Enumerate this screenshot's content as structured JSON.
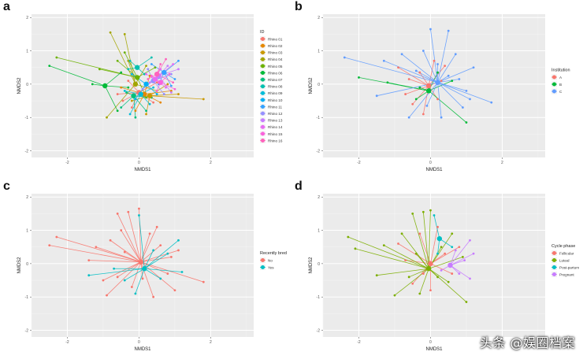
{
  "watermark": "头条 @娱圈档案",
  "chart_data": [
    {
      "panel": "a",
      "type": "scatter",
      "xlabel": "NMDS1",
      "ylabel": "NMDS2",
      "xlim": [
        -3,
        3.2
      ],
      "ylim": [
        -2.2,
        2.1
      ],
      "xticks": [
        -2,
        0,
        2
      ],
      "yticks": [
        -2,
        -1,
        0,
        1,
        2
      ],
      "legend_title": "ID",
      "legend_position": "right",
      "groups": [
        {
          "name": "Rhino 01",
          "color": "#F8766D",
          "centroid": [
            0.0,
            -0.25
          ],
          "points": [
            [
              -0.6,
              -0.3
            ],
            [
              -0.3,
              0.1
            ],
            [
              0.4,
              -0.55
            ],
            [
              -0.2,
              -0.7
            ],
            [
              0.5,
              0.05
            ],
            [
              -0.45,
              -0.5
            ]
          ]
        },
        {
          "name": "Rhino 02",
          "color": "#E58700",
          "centroid": [
            0.15,
            -0.3
          ],
          "points": [
            [
              -0.5,
              -0.1
            ],
            [
              0.9,
              -0.2
            ],
            [
              -0.1,
              -0.8
            ],
            [
              0.6,
              -0.55
            ],
            [
              0.3,
              0.25
            ]
          ]
        },
        {
          "name": "Rhino 03",
          "color": "#C99800",
          "centroid": [
            0.3,
            -0.35
          ],
          "points": [
            [
              1.8,
              -0.45
            ],
            [
              1.1,
              -0.3
            ],
            [
              0.2,
              -0.9
            ],
            [
              0.8,
              0.0
            ],
            [
              -0.2,
              -0.5
            ]
          ]
        },
        {
          "name": "Rhino 04",
          "color": "#A3A500",
          "centroid": [
            -0.1,
            0.0
          ],
          "points": [
            [
              -0.8,
              1.55
            ],
            [
              -0.4,
              1.5
            ],
            [
              -0.9,
              -1.0
            ],
            [
              0.2,
              0.55
            ],
            [
              -0.3,
              0.7
            ],
            [
              0.5,
              -0.2
            ]
          ]
        },
        {
          "name": "Rhino 05",
          "color": "#6BB100",
          "centroid": [
            -0.05,
            0.2
          ],
          "points": [
            [
              -2.3,
              0.8
            ],
            [
              -1.1,
              0.45
            ],
            [
              -0.6,
              0.7
            ],
            [
              0.45,
              0.5
            ],
            [
              0.2,
              -0.4
            ],
            [
              -0.4,
              0.95
            ]
          ]
        },
        {
          "name": "Rhino 06",
          "color": "#00BA38",
          "centroid": [
            -0.95,
            -0.05
          ],
          "points": [
            [
              -2.5,
              0.55
            ],
            [
              -0.5,
              0.35
            ],
            [
              -0.6,
              -0.8
            ],
            [
              -0.3,
              -0.1
            ],
            [
              -1.3,
              0.0
            ]
          ]
        },
        {
          "name": "Rhino 07",
          "color": "#00BF7D",
          "centroid": [
            -0.15,
            -0.35
          ],
          "points": [
            [
              -0.5,
              -0.7
            ],
            [
              0.2,
              -0.8
            ],
            [
              -0.1,
              -1.0
            ],
            [
              0.35,
              -0.4
            ],
            [
              -0.35,
              -0.25
            ]
          ]
        },
        {
          "name": "Rhino 08",
          "color": "#00C0AF",
          "centroid": [
            -0.05,
            0.5
          ],
          "points": [
            [
              0.35,
              0.8
            ],
            [
              -0.25,
              0.7
            ],
            [
              0.15,
              0.3
            ],
            [
              -0.3,
              0.45
            ]
          ]
        },
        {
          "name": "Rhino 09",
          "color": "#00BCD8",
          "centroid": [
            0.05,
            -0.3
          ],
          "points": [
            [
              -0.25,
              -0.9
            ],
            [
              0.3,
              -0.6
            ],
            [
              -0.4,
              -0.2
            ],
            [
              0.4,
              -0.1
            ]
          ]
        },
        {
          "name": "Rhino 10",
          "color": "#00B0F6",
          "centroid": [
            0.2,
            0.0
          ],
          "points": [
            [
              0.5,
              -0.3
            ],
            [
              -0.2,
              0.3
            ],
            [
              0.55,
              0.2
            ],
            [
              -0.1,
              -0.45
            ]
          ]
        },
        {
          "name": "Rhino 11",
          "color": "#35A2FF",
          "centroid": [
            0.7,
            0.35
          ],
          "points": [
            [
              1.1,
              0.7
            ],
            [
              0.9,
              -0.05
            ],
            [
              0.35,
              0.6
            ],
            [
              1.0,
              0.15
            ],
            [
              0.55,
              0.0
            ]
          ]
        },
        {
          "name": "Rhino 12",
          "color": "#9590FF",
          "centroid": [
            0.4,
            0.1
          ],
          "points": [
            [
              0.9,
              0.3
            ],
            [
              0.1,
              -0.15
            ],
            [
              0.7,
              -0.3
            ],
            [
              0.25,
              0.45
            ]
          ]
        },
        {
          "name": "Rhino 13",
          "color": "#C77CFF",
          "centroid": [
            0.55,
            0.25
          ],
          "points": [
            [
              1.1,
              0.45
            ],
            [
              0.8,
              0.55
            ],
            [
              0.3,
              0.05
            ],
            [
              0.9,
              -0.25
            ]
          ]
        },
        {
          "name": "Rhino 14",
          "color": "#E76BF3",
          "centroid": [
            0.45,
            0.15
          ],
          "points": [
            [
              0.95,
              0.6
            ],
            [
              0.6,
              0.45
            ],
            [
              0.2,
              0.3
            ],
            [
              0.75,
              -0.1
            ]
          ]
        },
        {
          "name": "Rhino 15",
          "color": "#FA62DB",
          "centroid": [
            0.6,
            0.05
          ],
          "points": [
            [
              1.0,
              -0.15
            ],
            [
              0.35,
              0.25
            ],
            [
              0.85,
              0.3
            ],
            [
              0.5,
              -0.2
            ]
          ]
        },
        {
          "name": "Rhino 16",
          "color": "#FF62BC",
          "centroid": [
            0.5,
            0.3
          ],
          "points": [
            [
              0.75,
              0.75
            ],
            [
              0.25,
              0.15
            ],
            [
              0.95,
              0.05
            ],
            [
              0.6,
              0.6
            ]
          ]
        }
      ]
    },
    {
      "panel": "b",
      "type": "scatter",
      "xlabel": "NMDS1",
      "ylabel": "NMDS2",
      "xlim": [
        -3,
        3.2
      ],
      "ylim": [
        -2.2,
        2.1
      ],
      "xticks": [
        -2,
        0,
        2
      ],
      "yticks": [
        -2,
        -1,
        0,
        1,
        2
      ],
      "legend_title": "Institution",
      "legend_position": "right",
      "groups": [
        {
          "name": "A",
          "color": "#F8766D",
          "centroid": [
            -0.05,
            -0.05
          ],
          "points": [
            [
              -0.9,
              0.5
            ],
            [
              -0.5,
              -0.6
            ],
            [
              0.3,
              0.1
            ],
            [
              -0.3,
              0.35
            ],
            [
              -0.6,
              0.15
            ],
            [
              0.2,
              -0.45
            ],
            [
              -0.2,
              -0.9
            ],
            [
              0.4,
              0.55
            ],
            [
              -0.7,
              -0.3
            ],
            [
              0.1,
              0.7
            ]
          ]
        },
        {
          "name": "B",
          "color": "#00BA38",
          "centroid": [
            -0.05,
            -0.2
          ],
          "points": [
            [
              -2.0,
              0.2
            ],
            [
              -1.2,
              0.05
            ],
            [
              1.0,
              -1.15
            ],
            [
              0.6,
              0.1
            ],
            [
              -0.4,
              -0.45
            ],
            [
              0.2,
              0.35
            ],
            [
              -0.3,
              -0.1
            ]
          ]
        },
        {
          "name": "C",
          "color": "#619CFF",
          "centroid": [
            0.2,
            0.05
          ],
          "points": [
            [
              -2.4,
              0.8
            ],
            [
              -1.3,
              0.7
            ],
            [
              0.0,
              1.65
            ],
            [
              0.5,
              1.6
            ],
            [
              1.7,
              -0.55
            ],
            [
              -1.5,
              -0.35
            ],
            [
              -0.6,
              -1.0
            ],
            [
              0.9,
              -0.7
            ],
            [
              1.2,
              0.5
            ],
            [
              -0.8,
              0.9
            ],
            [
              0.7,
              0.9
            ],
            [
              0.3,
              -1.0
            ],
            [
              -0.1,
              -0.65
            ],
            [
              1.0,
              -0.2
            ],
            [
              -0.4,
              0.4
            ],
            [
              0.5,
              0.25
            ],
            [
              0.8,
              0.15
            ],
            [
              0.2,
              0.6
            ],
            [
              -0.2,
              1.0
            ],
            [
              1.1,
              -0.45
            ]
          ]
        }
      ]
    },
    {
      "panel": "c",
      "type": "scatter",
      "xlabel": "NMDS1",
      "ylabel": "NMDS2",
      "xlim": [
        -3,
        3.2
      ],
      "ylim": [
        -2.2,
        2.1
      ],
      "xticks": [
        -2,
        0,
        2
      ],
      "yticks": [
        -2,
        -1,
        0,
        1,
        2
      ],
      "legend_title": "Recently bred",
      "legend_position": "right",
      "groups": [
        {
          "name": "No",
          "color": "#F8766D",
          "centroid": [
            0.05,
            0.05
          ],
          "points": [
            [
              -2.5,
              0.55
            ],
            [
              -2.3,
              0.8
            ],
            [
              -1.2,
              0.5
            ],
            [
              -0.6,
              1.5
            ],
            [
              -0.3,
              1.55
            ],
            [
              0.0,
              1.65
            ],
            [
              1.8,
              -0.55
            ],
            [
              1.1,
              0.4
            ],
            [
              -0.9,
              -0.95
            ],
            [
              0.4,
              -1.0
            ],
            [
              -0.6,
              -0.4
            ],
            [
              0.8,
              -0.3
            ],
            [
              -1.4,
              0.1
            ],
            [
              0.3,
              0.9
            ],
            [
              -0.2,
              -0.7
            ],
            [
              0.6,
              0.55
            ],
            [
              -0.8,
              0.7
            ],
            [
              0.9,
              0.2
            ],
            [
              -0.4,
              0.35
            ],
            [
              0.1,
              -0.45
            ],
            [
              1.0,
              -0.8
            ],
            [
              -1.0,
              -0.5
            ],
            [
              0.5,
              1.1
            ],
            [
              -0.5,
              1.0
            ]
          ]
        },
        {
          "name": "Yes",
          "color": "#00BFC4",
          "centroid": [
            0.15,
            -0.15
          ],
          "points": [
            [
              -1.4,
              -0.35
            ],
            [
              1.1,
              0.7
            ],
            [
              1.2,
              -0.25
            ],
            [
              0.6,
              -0.45
            ],
            [
              -0.4,
              -0.5
            ],
            [
              0.0,
              1.45
            ],
            [
              0.8,
              0.3
            ],
            [
              -0.1,
              -0.9
            ],
            [
              0.4,
              0.4
            ],
            [
              -0.7,
              -0.15
            ]
          ]
        }
      ]
    },
    {
      "panel": "d",
      "type": "scatter",
      "xlabel": "NMDS1",
      "ylabel": "NMDS2",
      "xlim": [
        -3,
        3.2
      ],
      "ylim": [
        -2.2,
        2.1
      ],
      "xticks": [
        -2,
        0,
        2
      ],
      "yticks": [
        -2,
        -1,
        0,
        1,
        2
      ],
      "legend_title": "Cycle phase",
      "legend_position": "right",
      "groups": [
        {
          "name": "Follicular",
          "color": "#F8766D",
          "centroid": [
            0.0,
            0.0
          ],
          "points": [
            [
              -0.9,
              0.6
            ],
            [
              -0.5,
              -0.6
            ],
            [
              0.4,
              0.3
            ],
            [
              -0.3,
              0.9
            ],
            [
              0.6,
              -0.3
            ],
            [
              0.0,
              -0.8
            ],
            [
              -0.7,
              0.1
            ],
            [
              0.8,
              0.5
            ],
            [
              0.2,
              1.1
            ],
            [
              -0.2,
              -0.3
            ]
          ]
        },
        {
          "name": "Luteal",
          "color": "#7CAE00",
          "centroid": [
            -0.05,
            -0.15
          ],
          "points": [
            [
              -2.3,
              0.8
            ],
            [
              -2.1,
              0.45
            ],
            [
              -1.3,
              0.55
            ],
            [
              -0.5,
              1.5
            ],
            [
              -0.2,
              1.55
            ],
            [
              0.0,
              1.6
            ],
            [
              1.0,
              -1.15
            ],
            [
              -1.0,
              -0.95
            ],
            [
              -0.6,
              -0.4
            ],
            [
              0.5,
              -0.55
            ],
            [
              -1.5,
              -0.35
            ],
            [
              0.3,
              0.5
            ],
            [
              -0.8,
              0.9
            ],
            [
              0.9,
              0.2
            ],
            [
              -0.3,
              -0.9
            ],
            [
              0.6,
              0.9
            ],
            [
              -0.4,
              0.3
            ],
            [
              0.2,
              -0.4
            ]
          ]
        },
        {
          "name": "Post-partum",
          "color": "#00BFC4",
          "centroid": [
            0.25,
            0.75
          ],
          "points": [
            [
              0.1,
              1.45
            ],
            [
              0.6,
              0.5
            ],
            [
              0.2,
              0.3
            ]
          ]
        },
        {
          "name": "Pregnant",
          "color": "#C77CFF",
          "centroid": [
            0.55,
            -0.05
          ],
          "points": [
            [
              1.1,
              0.7
            ],
            [
              1.2,
              0.3
            ],
            [
              1.1,
              -0.45
            ],
            [
              0.8,
              -0.3
            ],
            [
              0.7,
              0.4
            ],
            [
              0.3,
              -0.2
            ],
            [
              0.95,
              0.1
            ]
          ]
        }
      ]
    }
  ]
}
